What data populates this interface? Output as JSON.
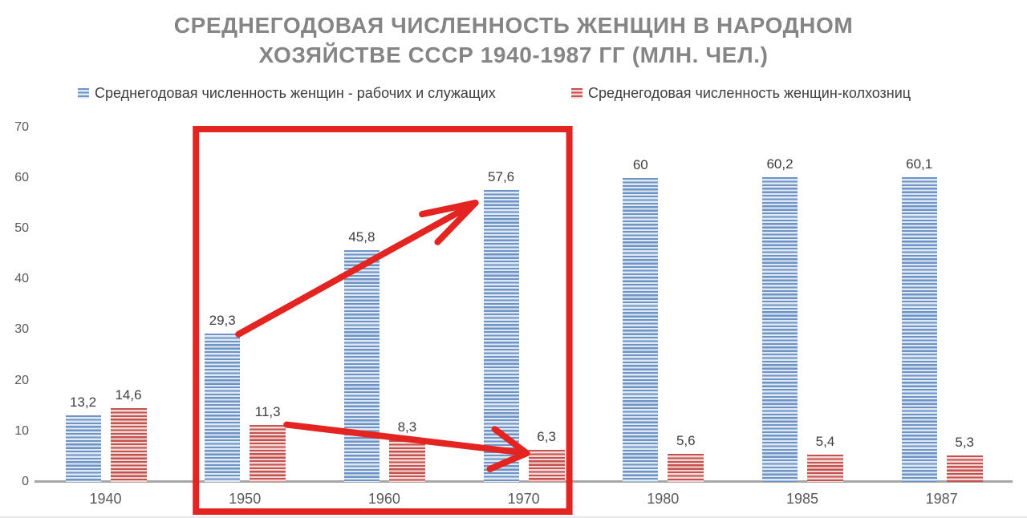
{
  "page": {
    "background": "#ffffff"
  },
  "chart_data": {
    "type": "bar",
    "title": "СРЕДНЕГОДОВАЯ ЧИСЛЕННОСТЬ ЖЕНЩИН В НАРОДНОМ ХОЗЯЙСТВЕ СССР 1940-1987 ГГ (МЛН. ЧЕЛ.)",
    "title_lines": [
      "СРЕДНЕГОДОВАЯ ЧИСЛЕННОСТЬ ЖЕНЩИН В НАРОДНОМ",
      "ХОЗЯЙСТВЕ СССР 1940-1987 ГГ (МЛН. ЧЕЛ.)"
    ],
    "categories": [
      "1940",
      "1950",
      "1960",
      "1970",
      "1980",
      "1985",
      "1987"
    ],
    "series": [
      {
        "key": "workers",
        "name": "Среднегодовая численность женщин - рабочих и служащих",
        "pattern_dark": "#6d94c4",
        "pattern_light": "#dfe9f4",
        "values": [
          13.2,
          29.3,
          45.8,
          57.6,
          60,
          60.2,
          60.1
        ],
        "labels": [
          "13,2",
          "29,3",
          "45,8",
          "57,6",
          "60",
          "60,2",
          "60,1"
        ]
      },
      {
        "key": "kolkhoz",
        "name": "Среднегодовая численность женщин-колхозниц",
        "pattern_dark": "#c5524e",
        "pattern_light": "#f2d9d7",
        "values": [
          14.6,
          11.3,
          8.3,
          6.3,
          5.6,
          5.4,
          5.3
        ],
        "labels": [
          "14,6",
          "11,3",
          "8,3",
          "6,3",
          "5,6",
          "5,4",
          "5,3"
        ]
      }
    ],
    "y_ticks": [
      0,
      10,
      20,
      30,
      40,
      50,
      60,
      70
    ],
    "ylim": [
      0,
      70
    ],
    "grid": false,
    "legend_position": "top",
    "axis_color": "#a6a6a6",
    "text_colors": {
      "title": "#858585",
      "value_labels": "#404040",
      "ticks": "#595959"
    },
    "annotations": {
      "color": "#e42421",
      "highlight_box_years": [
        "1950",
        "1970"
      ],
      "arrows": [
        {
          "series": "workers",
          "from_year": "1950",
          "to_year": "1970",
          "trend": "increase"
        },
        {
          "series": "kolkhoz",
          "from_year": "1950",
          "to_year": "1970",
          "trend": "decrease"
        }
      ]
    }
  }
}
